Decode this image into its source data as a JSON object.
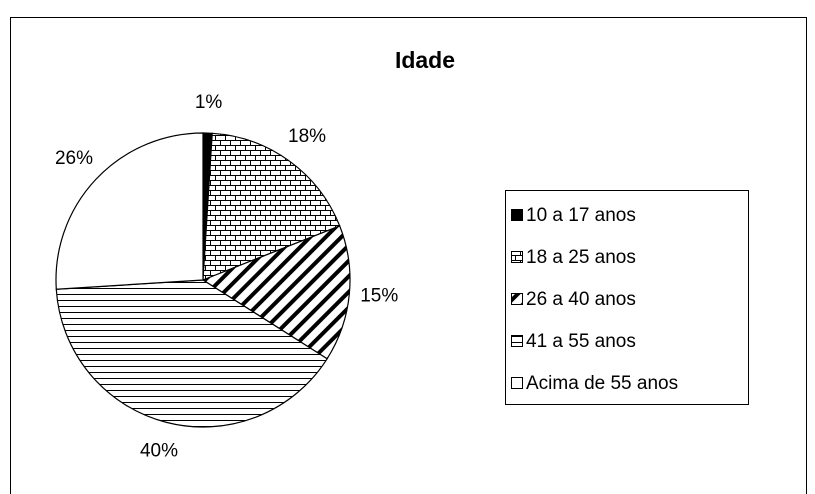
{
  "chart_data": {
    "type": "pie",
    "title": "Idade",
    "categories": [
      "10 a 17 anos",
      "18 a 25 anos",
      "26 a 40 anos",
      "41 a 55 anos",
      "Acima de 55 anos"
    ],
    "values": [
      1,
      18,
      15,
      40,
      26
    ],
    "value_labels": [
      "1%",
      "18%",
      "15%",
      "40%",
      "26%"
    ],
    "legend": "right"
  }
}
